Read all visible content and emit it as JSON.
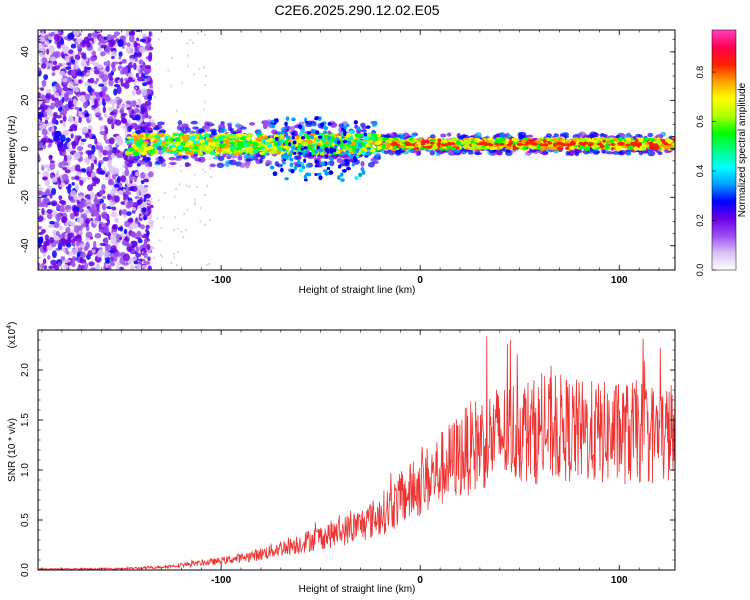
{
  "figure_title": "C2E6.2025.290.12.02.E05",
  "colorbar": {
    "label": "Normalized spectral amplitude",
    "ticks": [
      "0.0",
      "0.2",
      "0.4",
      "0.6",
      "0.8"
    ],
    "tick_values": [
      0.0,
      0.2,
      0.4,
      0.6,
      0.8
    ],
    "range": [
      0,
      0.97
    ],
    "colors": [
      "#ffffff",
      "#d9c2f5",
      "#9b4df0",
      "#6a00e8",
      "#0000ff",
      "#00a0ff",
      "#00ffff",
      "#00ff80",
      "#00ff00",
      "#b0ff00",
      "#ffff00",
      "#ffa000",
      "#ff2000",
      "#ff0050",
      "#ff40c0"
    ]
  },
  "chart_data": [
    {
      "type": "heatmap",
      "title": "C2E6.2025.290.12.02.E05",
      "xlabel": "Height of straight line (km)",
      "ylabel": "Frequency (Hz)",
      "xlim": [
        -192,
        128
      ],
      "ylim": [
        -50,
        49
      ],
      "x_ticks": [
        -100,
        0,
        100
      ],
      "x_tick_labels": [
        "-100",
        "0",
        "100"
      ],
      "y_ticks": [
        40,
        20,
        0,
        -20,
        -40
      ],
      "y_tick_labels": [
        "40",
        "20",
        "0",
        "-20",
        "-40"
      ],
      "description_regions": {
        "scattered_noise_x_range": [
          -192,
          -145
        ],
        "signal_band_x_range": [
          -147,
          128
        ],
        "signal_center_freq": 2
      }
    },
    {
      "type": "line",
      "xlabel": "Height of straight line (km)",
      "ylabel": "SNR (10 * v/v)",
      "y_multiplier": "(x10",
      "y_multiplier_exp": "4",
      "y_multiplier_close": ")",
      "xlim": [
        -192,
        128
      ],
      "ylim": [
        0,
        2.4
      ],
      "x_ticks": [
        -100,
        0,
        100
      ],
      "x_tick_labels": [
        "-100",
        "0",
        "100"
      ],
      "y_ticks": [
        0.0,
        0.5,
        1.0,
        1.5,
        2.0
      ],
      "y_tick_labels": [
        "0.0",
        "0.5",
        "1.0",
        "1.5",
        "2.0"
      ],
      "series": [
        {
          "name": "SNR",
          "color": "#ee3333",
          "x": [
            -192,
            -170,
            -150,
            -140,
            -130,
            -120,
            -110,
            -100,
            -90,
            -80,
            -70,
            -60,
            -50,
            -40,
            -30,
            -20,
            -10,
            0,
            10,
            20,
            30,
            40,
            50,
            60,
            70,
            80,
            90,
            100,
            110,
            120,
            128
          ],
          "values": [
            0.01,
            0.01,
            0.015,
            0.02,
            0.03,
            0.05,
            0.07,
            0.09,
            0.12,
            0.16,
            0.22,
            0.27,
            0.33,
            0.38,
            0.45,
            0.55,
            0.7,
            0.85,
            1.0,
            1.15,
            1.28,
            1.35,
            1.4,
            1.38,
            1.42,
            1.38,
            1.37,
            1.36,
            1.38,
            1.35,
            1.37
          ]
        }
      ]
    }
  ]
}
